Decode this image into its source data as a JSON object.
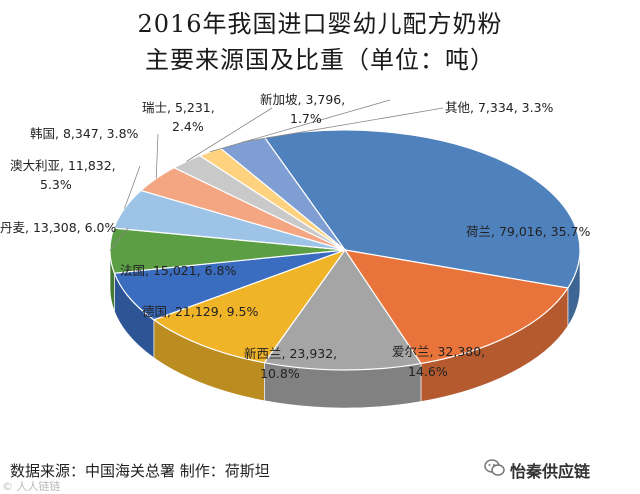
{
  "title_line1": "2016年我国进口婴幼儿配方奶粉",
  "title_line2": "主要来源国及比重（单位：吨）",
  "footer": {
    "source": "数据来源：中国海关总署    制作：荷斯坦",
    "brand": "怡秦供应链",
    "brand_icon": "wechat-icon",
    "watermark": "© 人人链链"
  },
  "chart_data": {
    "type": "pie",
    "title": "2016年我国进口婴幼儿配方奶粉主要来源国及比重（单位：吨）",
    "unit": "吨",
    "slices": [
      {
        "name": "荷兰",
        "value": 79016,
        "percent": 35.7,
        "label": "荷兰, 79,016, 35.7%",
        "color": "#4f81bd"
      },
      {
        "name": "爱尔兰",
        "value": 32380,
        "percent": 14.6,
        "label": "爱尔兰, 32,380, 14.6%",
        "color": "#e8743b"
      },
      {
        "name": "新西兰",
        "value": 23932,
        "percent": 10.8,
        "label": "新西兰, 23,932, 10.8%",
        "color": "#a5a5a5"
      },
      {
        "name": "德国",
        "value": 21129,
        "percent": 9.5,
        "label": "德国, 21,129, 9.5%",
        "color": "#f0b429"
      },
      {
        "name": "法国",
        "value": 15021,
        "percent": 6.8,
        "label": "法国, 15,021, 6.8%",
        "color": "#3a6cbf"
      },
      {
        "name": "丹麦",
        "value": 13308,
        "percent": 6.0,
        "label": "丹麦, 13,308, 6.0%",
        "color": "#5b9e44"
      },
      {
        "name": "澳大利亚",
        "value": 11832,
        "percent": 5.3,
        "label": "澳大利亚, 11,832, 5.3%",
        "color": "#9dc3e6"
      },
      {
        "name": "韩国",
        "value": 8347,
        "percent": 3.8,
        "label": "韩国, 8,347, 3.8%",
        "color": "#f4a582"
      },
      {
        "name": "瑞士",
        "value": 5231,
        "percent": 2.4,
        "label": "瑞士, 5,231, 2.4%",
        "color": "#c9c9c9"
      },
      {
        "name": "新加坡",
        "value": 3796,
        "percent": 1.7,
        "label": "新加坡, 3,796, 1.7%",
        "color": "#ffd27f"
      },
      {
        "name": "其他",
        "value": 7334,
        "percent": 3.3,
        "label": "其他, 7,334, 3.3%",
        "color": "#7f9fd4"
      }
    ]
  }
}
